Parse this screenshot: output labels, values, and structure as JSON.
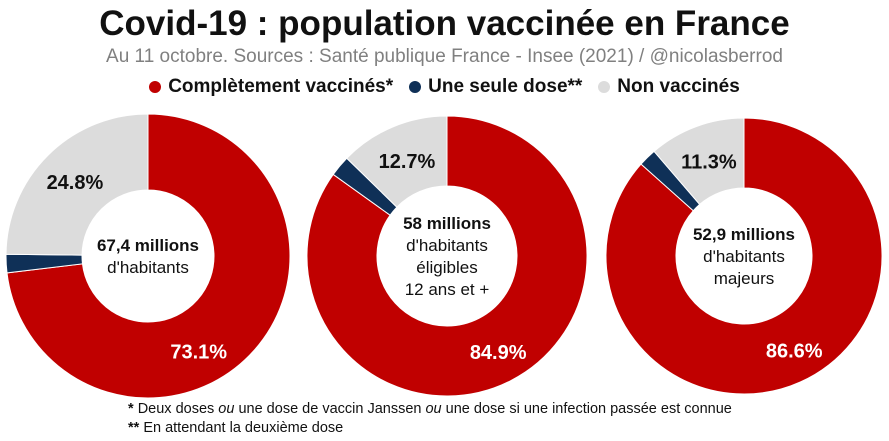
{
  "header": {
    "title": "Covid-19 : population vaccinée en France",
    "subtitle": "Au 11 octobre. Sources : Santé publique France - Insee (2021) / @nicolasberrod"
  },
  "legend": [
    {
      "label": "Complètement vaccinés*",
      "color": "#c00000"
    },
    {
      "label": "Une seule dose**",
      "color": "#0f3057"
    },
    {
      "label": "Non vaccinés",
      "color": "#dcdcdc"
    }
  ],
  "chart_data": [
    {
      "type": "pie",
      "variant": "donut",
      "center_label": [
        "67,4 millions",
        "d'habitants"
      ],
      "slices": [
        {
          "series": "Complètement vaccinés*",
          "value": 73.1,
          "label": "73.1%",
          "color": "#c00000"
        },
        {
          "series": "Une seule dose**",
          "value": 2.1,
          "label": "",
          "color": "#0f3057"
        },
        {
          "series": "Non vaccinés",
          "value": 24.8,
          "label": "24.8%",
          "color": "#dcdcdc"
        }
      ]
    },
    {
      "type": "pie",
      "variant": "donut",
      "center_label": [
        "58 millions",
        "d'habitants",
        "éligibles",
        "12 ans et +"
      ],
      "slices": [
        {
          "series": "Complètement vaccinés*",
          "value": 84.9,
          "label": "84.9%",
          "color": "#c00000"
        },
        {
          "series": "Une seule dose**",
          "value": 2.4,
          "label": "",
          "color": "#0f3057"
        },
        {
          "series": "Non vaccinés",
          "value": 12.7,
          "label": "12.7%",
          "color": "#dcdcdc"
        }
      ]
    },
    {
      "type": "pie",
      "variant": "donut",
      "center_label": [
        "52,9 millions",
        "d'habitants",
        "majeurs"
      ],
      "slices": [
        {
          "series": "Complètement vaccinés*",
          "value": 86.6,
          "label": "86.6%",
          "color": "#c00000"
        },
        {
          "series": "Une seule dose**",
          "value": 2.1,
          "label": "",
          "color": "#0f3057"
        },
        {
          "series": "Non vaccinés",
          "value": 11.3,
          "label": "11.3%",
          "color": "#dcdcdc"
        }
      ]
    }
  ],
  "footnotes": [
    {
      "marker": "*",
      "parts": [
        "Deux doses ",
        "ou",
        " une dose de vaccin Janssen ",
        "ou",
        " une dose si une infection passée est connue"
      ]
    },
    {
      "marker": "**",
      "parts": [
        "En attendant la deuxième dose"
      ]
    }
  ]
}
